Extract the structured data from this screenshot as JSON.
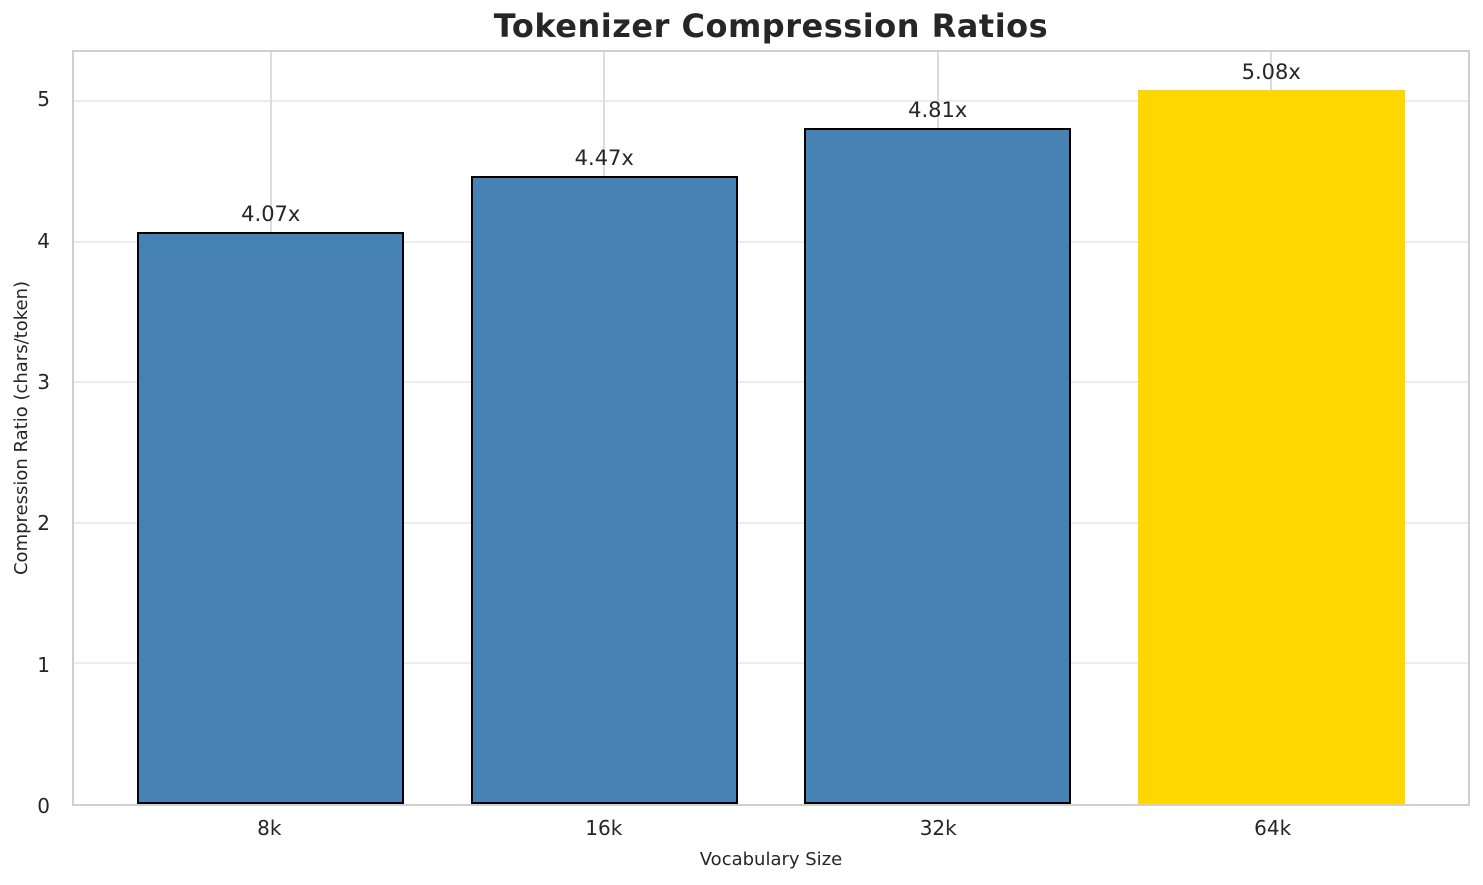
{
  "chart_data": {
    "type": "bar",
    "title": "Tokenizer Compression Ratios",
    "xlabel": "Vocabulary Size",
    "ylabel": "Compression Ratio (chars/token)",
    "categories": [
      "8k",
      "16k",
      "32k",
      "64k"
    ],
    "values": [
      4.07,
      4.47,
      4.81,
      5.08
    ],
    "bars": [
      {
        "category": "8k",
        "value": 4.07,
        "label": "4.07x",
        "color": "#4682b4",
        "edge": "#000000"
      },
      {
        "category": "16k",
        "value": 4.47,
        "label": "4.47x",
        "color": "#4682b4",
        "edge": "#000000"
      },
      {
        "category": "32k",
        "value": 4.81,
        "label": "4.81x",
        "color": "#4682b4",
        "edge": "#000000"
      },
      {
        "category": "64k",
        "value": 5.08,
        "label": "5.08x",
        "color": "#ffd700",
        "edge": "none"
      }
    ],
    "highlight_index": 3,
    "yticks": [
      0,
      1,
      2,
      3,
      4,
      5
    ],
    "ylim": [
      0,
      5.35
    ],
    "grid": true,
    "legend": "none",
    "colors": {
      "bar_default": "#4682b4",
      "bar_highlight": "#ffd700",
      "bar_edge": "#000000",
      "title_text": "#262626",
      "tick_text": "#262626",
      "grid_horizontal": "#ececec",
      "grid_vertical": "#dcdcdc",
      "spine": "#cfcfcf",
      "background": "#ffffff"
    }
  }
}
